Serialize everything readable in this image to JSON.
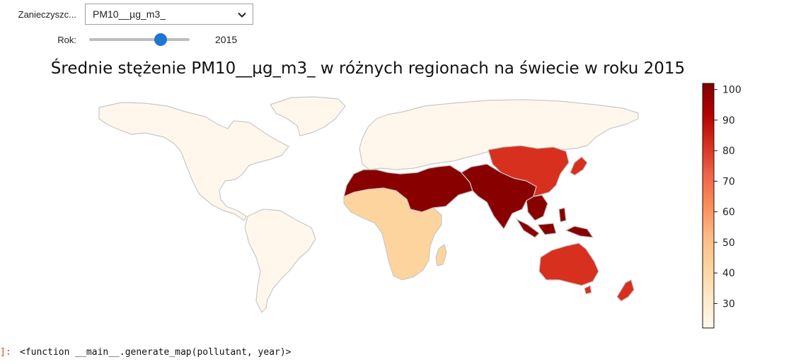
{
  "controls": {
    "pollutant_label": "Zanieczyszc...",
    "pollutant_value": "PM10__µg_m3_",
    "year_label": "Rok:",
    "year_value": "2015",
    "year_fraction": 0.71
  },
  "map": {
    "title": "Średnie stężenie PM10__µg_m3_ w różnych regionach na świecie w roku 2015",
    "colormap": "OrRd",
    "vmin": 22,
    "vmax": 102,
    "colorbar_ticks": [
      30,
      40,
      50,
      60,
      70,
      80,
      90,
      100
    ],
    "border_color": "#c8c8c8",
    "regions": [
      {
        "name": "North America",
        "value": 22
      },
      {
        "name": "Greenland",
        "value": 22
      },
      {
        "name": "South America",
        "value": 22
      },
      {
        "name": "Europe and Russia",
        "value": 22
      },
      {
        "name": "Sub-Saharan Africa",
        "value": 42
      },
      {
        "name": "Middle East and North Africa",
        "value": 100
      },
      {
        "name": "South Asia",
        "value": 100
      },
      {
        "name": "East Asia",
        "value": 82
      },
      {
        "name": "Southeast Asia",
        "value": 100
      },
      {
        "name": "Oceania",
        "value": 82
      },
      {
        "name": "New Zealand",
        "value": 82
      },
      {
        "name": "Madagascar",
        "value": 42
      }
    ]
  },
  "output": {
    "prompt": "]:",
    "text": "<function __main__.generate_map(pollutant, year)>"
  }
}
